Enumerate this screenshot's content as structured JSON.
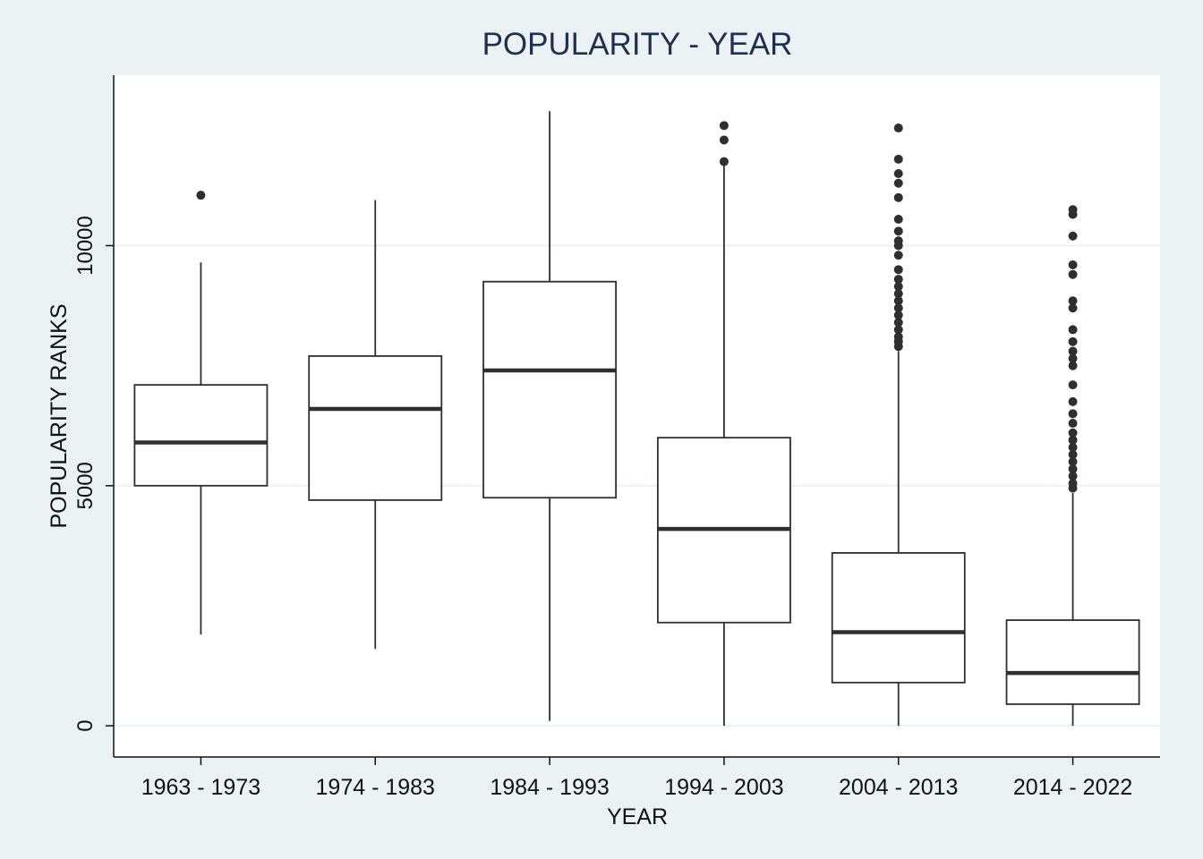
{
  "chart_data": {
    "type": "box",
    "title": "POPULARITY - YEAR",
    "xlabel": "YEAR",
    "ylabel": "POPULARITY RANKS",
    "ylim": [
      -650,
      13550
    ],
    "yticks": [
      0,
      5000,
      10000
    ],
    "grid": true,
    "legend": "none",
    "colors": {
      "background": "#eaf2f3",
      "plot_area": "#ffffff",
      "box_stroke": "#2f2f2f",
      "gridline": "#eaf2f3",
      "title": "#1f2f4f",
      "text": "#111111"
    },
    "categories": [
      "1963 - 1973",
      "1974 - 1983",
      "1984 - 1993",
      "1994 - 2003",
      "2004 - 2013",
      "2014 - 2022"
    ],
    "boxes": [
      {
        "category": "1963 - 1973",
        "whisker_low": 1900,
        "q1": 5000,
        "median": 5900,
        "q3": 7100,
        "whisker_high": 9650,
        "outliers": [
          11050
        ]
      },
      {
        "category": "1974 - 1983",
        "whisker_low": 1600,
        "q1": 4700,
        "median": 6600,
        "q3": 7700,
        "whisker_high": 10950,
        "outliers": []
      },
      {
        "category": "1984 - 1993",
        "whisker_low": 100,
        "q1": 4750,
        "median": 7400,
        "q3": 9250,
        "whisker_high": 12800,
        "outliers": []
      },
      {
        "category": "1994 - 2003",
        "whisker_low": 0,
        "q1": 2150,
        "median": 4100,
        "q3": 6000,
        "whisker_high": 11700,
        "outliers": [
          11750,
          12200,
          12500
        ]
      },
      {
        "category": "2004 - 2013",
        "whisker_low": 0,
        "q1": 900,
        "median": 1950,
        "q3": 3600,
        "whisker_high": 7800,
        "outliers": [
          7900,
          8000,
          8100,
          8250,
          8400,
          8550,
          8700,
          8850,
          9000,
          9150,
          9300,
          9500,
          9800,
          10000,
          10100,
          10300,
          10550,
          11000,
          11300,
          11500,
          11800,
          12450
        ]
      },
      {
        "category": "2014 - 2022",
        "whisker_low": 0,
        "q1": 450,
        "median": 1100,
        "q3": 2200,
        "whisker_high": 4850,
        "outliers": [
          4950,
          5050,
          5200,
          5350,
          5500,
          5650,
          5800,
          5950,
          6100,
          6300,
          6500,
          6750,
          7100,
          7500,
          7650,
          7800,
          8000,
          8250,
          8700,
          8850,
          9400,
          9600,
          10200,
          10650,
          10750
        ]
      }
    ]
  }
}
